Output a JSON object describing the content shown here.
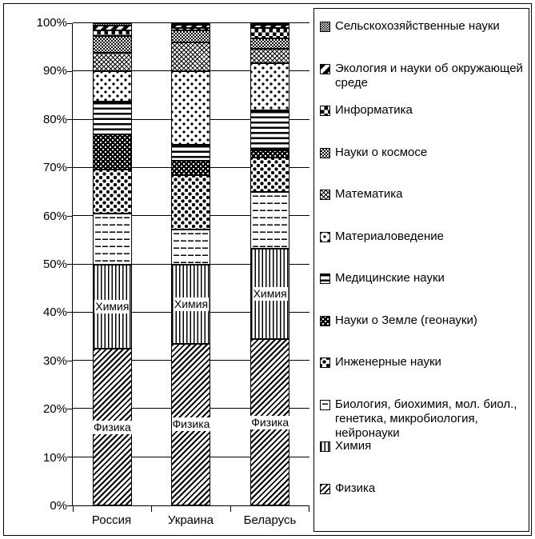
{
  "chart_data": {
    "type": "bar",
    "subtype": "100%-stacked-column",
    "categories": [
      "Россия",
      "Украина",
      "Беларусь"
    ],
    "series": [
      {
        "name": "Физика",
        "pattern": "fizika",
        "values": [
          32.5,
          33.6,
          34.5
        ]
      },
      {
        "name": "Химия",
        "pattern": "himiya",
        "values": [
          17.5,
          16.4,
          18.8
        ]
      },
      {
        "name": "Биология, биохимия, мол. биол., генетика, микробиология, нейронауки",
        "pattern": "biologiya",
        "values": [
          10.5,
          7.3,
          11.7
        ]
      },
      {
        "name": "Инженерные науки",
        "pattern": "inzhenernye",
        "values": [
          9.2,
          11.3,
          7.2
        ]
      },
      {
        "name": "Науки о Земле (геонауки)",
        "pattern": "zemlya",
        "values": [
          7.3,
          3.1,
          1.4
        ]
      },
      {
        "name": "Медицинские науки",
        "pattern": "medicinskie",
        "values": [
          6.8,
          3.3,
          8.3
        ]
      },
      {
        "name": "Материаловедение",
        "pattern": "materialovedenie",
        "values": [
          6.3,
          15.2,
          9.8
        ]
      },
      {
        "name": "Математика",
        "pattern": "matematika",
        "values": [
          3.8,
          6.0,
          3.0
        ]
      },
      {
        "name": "Науки о космосе",
        "pattern": "kosmos",
        "values": [
          3.4,
          2.5,
          2.1
        ]
      },
      {
        "name": "Информатика",
        "pattern": "informatika",
        "values": [
          1.2,
          0.5,
          2.3
        ]
      },
      {
        "name": "Экология и науки об окружающей среде",
        "pattern": "ekologiya",
        "values": [
          1.0,
          0.7,
          0.6
        ]
      },
      {
        "name": "Сельскохозяйственные науки",
        "pattern": "selhoz",
        "values": [
          0.5,
          0.1,
          0.3
        ]
      }
    ],
    "y_ticks": [
      "0%",
      "10%",
      "20%",
      "30%",
      "40%",
      "50%",
      "60%",
      "70%",
      "80%",
      "90%",
      "100%"
    ],
    "ylim": [
      0,
      100
    ],
    "grid": true,
    "legend_position": "right",
    "legend_order_top_to_bottom": [
      "Сельскохозяйственные науки",
      "Экология и науки об окружающей среде",
      "Информатика",
      "Науки о космосе",
      "Математика",
      "Материаловедение",
      "Медицинские науки",
      "Науки о Земле (геонауки)",
      "Инженерные науки",
      "Биология, биохимия, мол. биол., генетика, микробиология, нейронауки",
      "Химия",
      "Физика"
    ],
    "inner_bar_labels": [
      "Физика",
      "Химия"
    ]
  }
}
